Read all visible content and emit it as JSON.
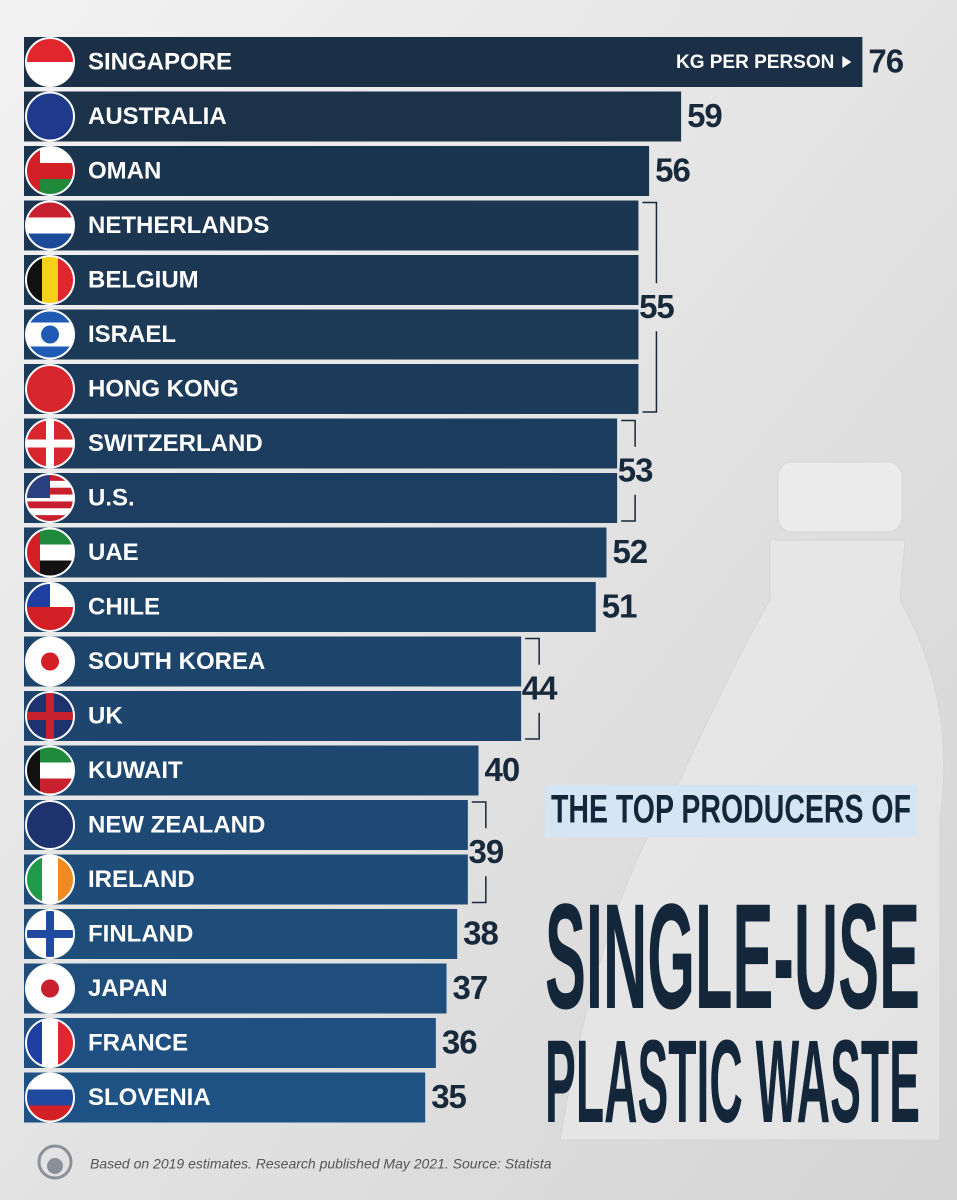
{
  "chart_data": {
    "type": "bar",
    "orientation": "horizontal",
    "title": [
      "THE TOP PRODUCERS OF",
      "SINGLE-USE",
      "PLASTIC WASTE"
    ],
    "annotation": "KG PER PERSON",
    "source": "Based on 2019 estimates. Research published May 2021. Source: Statista",
    "categories": [
      "SINGAPORE",
      "AUSTRALIA",
      "OMAN",
      "NETHERLANDS",
      "BELGIUM",
      "ISRAEL",
      "HONG KONG",
      "SWITZERLAND",
      "U.S.",
      "UAE",
      "CHILE",
      "SOUTH KOREA",
      "UK",
      "KUWAIT",
      "NEW ZEALAND",
      "IRELAND",
      "FINLAND",
      "JAPAN",
      "FRANCE",
      "SLOVENIA"
    ],
    "values": [
      76,
      59,
      56,
      55,
      55,
      55,
      55,
      53,
      53,
      52,
      51,
      44,
      44,
      40,
      39,
      39,
      38,
      37,
      36,
      35
    ],
    "xlim": [
      0,
      80
    ],
    "colors": [
      "#1b3046",
      "#1f5284"
    ]
  }
}
